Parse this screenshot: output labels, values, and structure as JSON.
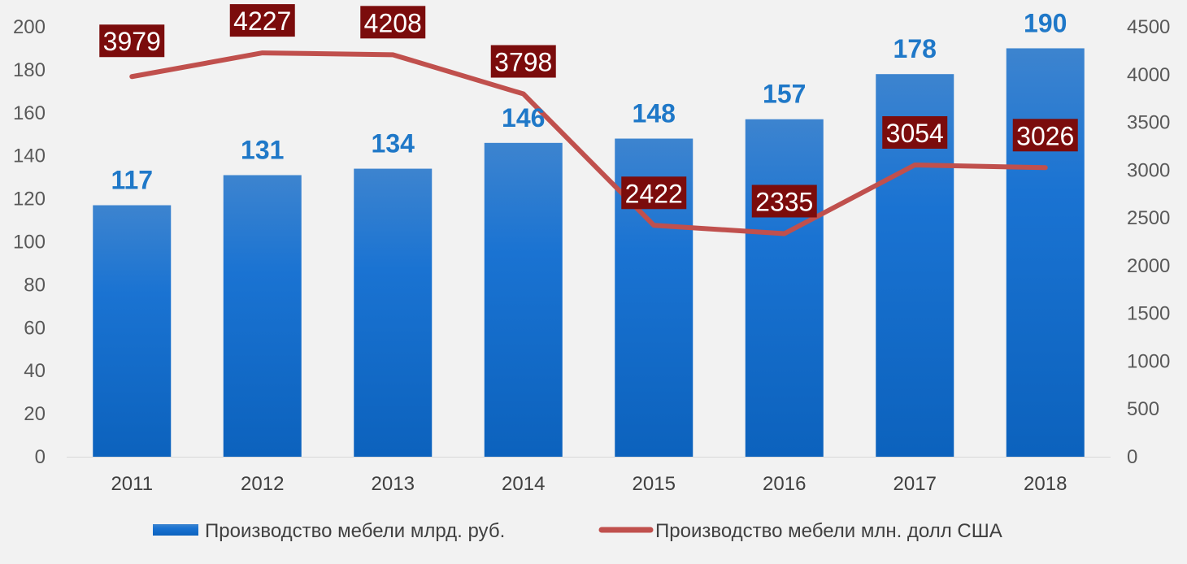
{
  "chart_data": {
    "type": "bar",
    "categories": [
      "2011",
      "2012",
      "2013",
      "2014",
      "2015",
      "2016",
      "2017",
      "2018"
    ],
    "series": [
      {
        "name": "Производство мебели млрд. руб.",
        "type": "bar",
        "axis": "left",
        "values": [
          117,
          131,
          134,
          146,
          148,
          157,
          178,
          190
        ],
        "color": "#1a6fc9"
      },
      {
        "name": "Производство мебели млн. долл США",
        "type": "line",
        "axis": "right",
        "values": [
          3979,
          4227,
          4208,
          3798,
          2422,
          2335,
          3054,
          3026
        ],
        "color": "#c0504d",
        "label_bg": "#7b0c0c"
      }
    ],
    "y_left": {
      "min": 0,
      "max": 200,
      "step": 20,
      "ticks": [
        "0",
        "20",
        "40",
        "60",
        "80",
        "100",
        "120",
        "140",
        "160",
        "180",
        "200"
      ]
    },
    "y_right": {
      "min": 0,
      "max": 4500,
      "step": 500,
      "ticks": [
        "0",
        "500",
        "1000",
        "1500",
        "2000",
        "2500",
        "3000",
        "3500",
        "4000",
        "4500"
      ]
    },
    "grid": false,
    "legend": "bottom",
    "bar_labels": [
      "117",
      "131",
      "134",
      "146",
      "148",
      "157",
      "178",
      "190"
    ],
    "line_labels": [
      "3979",
      "4227",
      "4208",
      "3798",
      "2422",
      "2335",
      "3054",
      "3026"
    ],
    "legend_items": [
      "Производство мебели млрд. руб.",
      "Производство мебели млн. долл США"
    ]
  }
}
